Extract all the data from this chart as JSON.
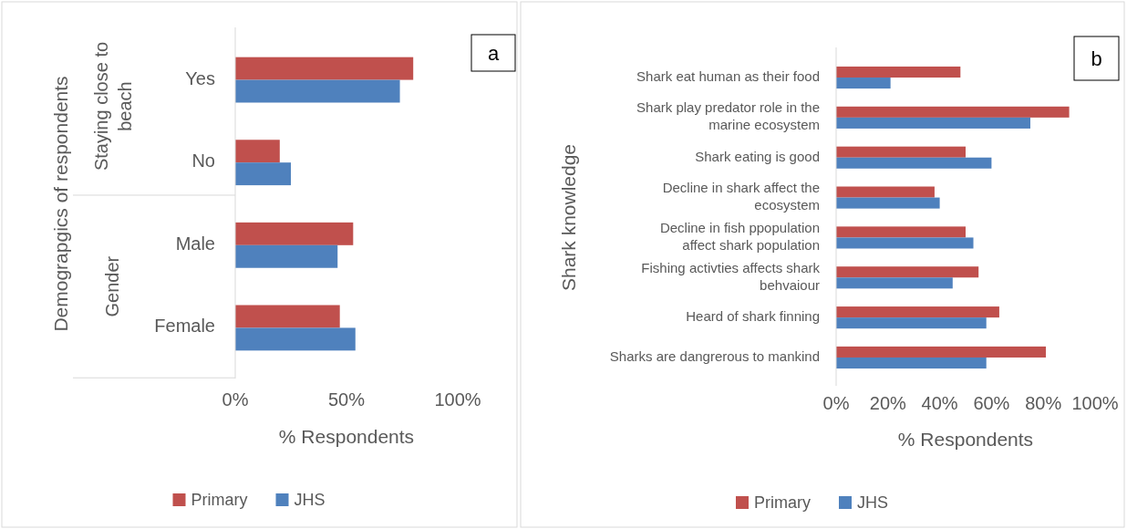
{
  "chart_data": [
    {
      "type": "bar",
      "orientation": "horizontal",
      "categories": [
        "Yes",
        "No",
        "Male",
        "Female"
      ],
      "xlim": [
        0,
        1
      ],
      "xticks": [
        {
          "value": 0,
          "label": "0%"
        },
        {
          "value": 0.5,
          "label": "50%"
        },
        {
          "value": 1,
          "label": "100%"
        }
      ],
      "xlabel": "% Respondents",
      "ylabel": "Demograpgics of respondents",
      "annotations": [
        "a",
        "Staying close to beach",
        "Gender"
      ],
      "legend": "bottom",
      "grid": false,
      "series": [
        {
          "name": "Primary",
          "color": "#c0504d",
          "values": [
            0.8,
            0.2,
            0.53,
            0.47
          ]
        },
        {
          "name": "JHS",
          "color": "#4f81bd",
          "values": [
            0.74,
            0.25,
            0.46,
            0.54
          ]
        }
      ]
    },
    {
      "type": "bar",
      "orientation": "horizontal",
      "categories": [
        "Shark eat human as their food",
        "Shark play predator role in the marine ecosystem",
        "Shark eating is good",
        "Decline in shark affect the ecosystem",
        "Decline in fish ppopulation affect shark population",
        "Fishing activties affects shark behvaiour",
        "Heard of shark finning",
        "Sharks are dangrerous to mankind"
      ],
      "xlim": [
        0,
        1
      ],
      "xticks": [
        {
          "value": 0,
          "label": "0%"
        },
        {
          "value": 0.2,
          "label": "20%"
        },
        {
          "value": 0.4,
          "label": "40%"
        },
        {
          "value": 0.6,
          "label": "60%"
        },
        {
          "value": 0.8,
          "label": "80%"
        },
        {
          "value": 1,
          "label": "100%"
        }
      ],
      "xlabel": "% Respondents",
      "ylabel": "Shark knowledge",
      "annotations": [
        "b"
      ],
      "legend": "bottom",
      "grid": false,
      "series": [
        {
          "name": "Primary",
          "color": "#c0504d",
          "values": [
            0.48,
            0.9,
            0.5,
            0.38,
            0.5,
            0.55,
            0.63,
            0.81
          ]
        },
        {
          "name": "JHS",
          "color": "#4f81bd",
          "values": [
            0.21,
            0.75,
            0.6,
            0.4,
            0.53,
            0.45,
            0.58,
            0.58
          ]
        }
      ]
    }
  ]
}
